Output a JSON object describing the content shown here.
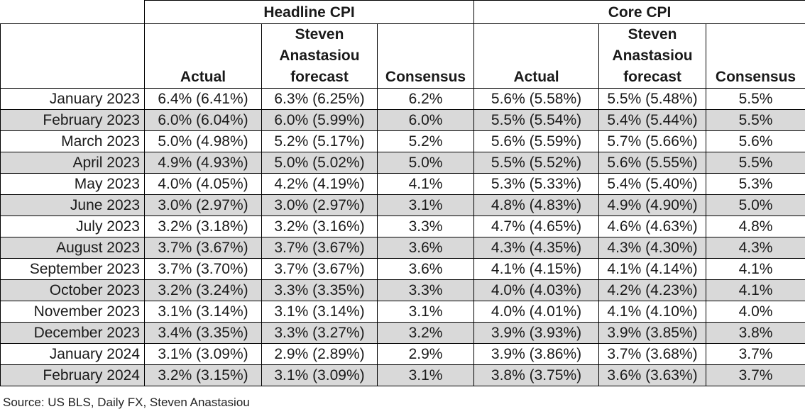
{
  "chart_data": {
    "type": "table",
    "groups": [
      "Headline CPI",
      "Core CPI"
    ],
    "columns": [
      "Actual",
      "Steven Anastasiou forecast",
      "Consensus",
      "Actual",
      "Steven Anastasiou forecast",
      "Consensus"
    ],
    "rows": [
      {
        "date": "January 2023",
        "cells": [
          "6.4% (6.41%)",
          "6.3% (6.25%)",
          "6.2%",
          "5.6% (5.58%)",
          "5.5% (5.48%)",
          "5.5%"
        ]
      },
      {
        "date": "February 2023",
        "cells": [
          "6.0% (6.04%)",
          "6.0% (5.99%)",
          "6.0%",
          "5.5% (5.54%)",
          "5.4% (5.44%)",
          "5.5%"
        ]
      },
      {
        "date": "March 2023",
        "cells": [
          "5.0% (4.98%)",
          "5.2% (5.17%)",
          "5.2%",
          "5.6% (5.59%)",
          "5.7% (5.66%)",
          "5.6%"
        ]
      },
      {
        "date": "April 2023",
        "cells": [
          "4.9% (4.93%)",
          "5.0% (5.02%)",
          "5.0%",
          "5.5% (5.52%)",
          "5.6% (5.55%)",
          "5.5%"
        ]
      },
      {
        "date": "May 2023",
        "cells": [
          "4.0% (4.05%)",
          "4.2% (4.19%)",
          "4.1%",
          "5.3% (5.33%)",
          "5.4% (5.40%)",
          "5.3%"
        ]
      },
      {
        "date": "June 2023",
        "cells": [
          "3.0% (2.97%)",
          "3.0% (2.97%)",
          "3.1%",
          "4.8% (4.83%)",
          "4.9% (4.90%)",
          "5.0%"
        ]
      },
      {
        "date": "July 2023",
        "cells": [
          "3.2% (3.18%)",
          "3.2% (3.16%)",
          "3.3%",
          "4.7% (4.65%)",
          "4.6% (4.63%)",
          "4.8%"
        ]
      },
      {
        "date": "August 2023",
        "cells": [
          "3.7% (3.67%)",
          "3.7% (3.67%)",
          "3.6%",
          "4.3% (4.35%)",
          "4.3% (4.30%)",
          "4.3%"
        ]
      },
      {
        "date": "September 2023",
        "cells": [
          "3.7% (3.70%)",
          "3.7% (3.67%)",
          "3.6%",
          "4.1% (4.15%)",
          "4.1% (4.14%)",
          "4.1%"
        ]
      },
      {
        "date": "October 2023",
        "cells": [
          "3.2% (3.24%)",
          "3.3% (3.35%)",
          "3.3%",
          "4.0% (4.03%)",
          "4.2% (4.23%)",
          "4.1%"
        ]
      },
      {
        "date": "November 2023",
        "cells": [
          "3.1% (3.14%)",
          "3.1% (3.14%)",
          "3.1%",
          "4.0% (4.01%)",
          "4.1% (4.10%)",
          "4.0%"
        ]
      },
      {
        "date": "December 2023",
        "cells": [
          "3.4% (3.35%)",
          "3.3% (3.27%)",
          "3.2%",
          "3.9% (3.93%)",
          "3.9% (3.85%)",
          "3.8%"
        ]
      },
      {
        "date": "January 2024",
        "cells": [
          "3.1% (3.09%)",
          "2.9% (2.89%)",
          "2.9%",
          "3.9% (3.86%)",
          "3.7% (3.68%)",
          "3.7%"
        ]
      },
      {
        "date": "February 2024",
        "cells": [
          "3.2% (3.15%)",
          "3.1% (3.09%)",
          "3.1%",
          "3.8% (3.75%)",
          "3.6% (3.63%)",
          "3.7%"
        ]
      }
    ],
    "shading": {
      "alternate_rows": true,
      "shade_color": "#d9d9d9"
    },
    "source": "Source: US BLS, Daily FX, Steven Anastasiou"
  }
}
